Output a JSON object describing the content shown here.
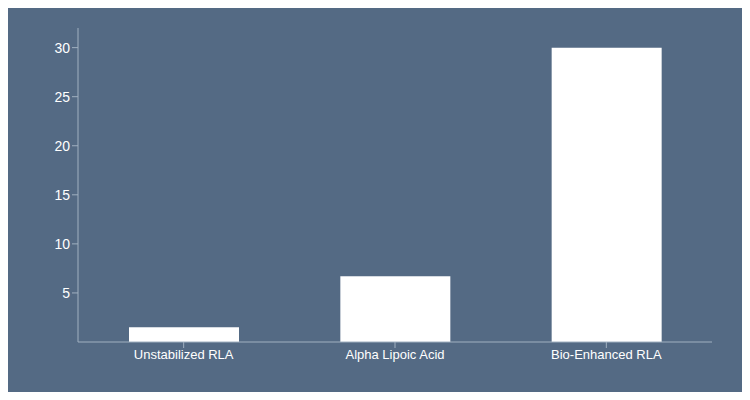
{
  "chart_data": {
    "type": "bar",
    "categories": [
      "Unstabilized RLA",
      "Alpha Lipoic Acid",
      "Bio-Enhanced RLA"
    ],
    "values": [
      1.5,
      6.7,
      30.0
    ],
    "color": "#ffffff",
    "ylim": [
      0,
      32
    ],
    "yticks": [
      5,
      10,
      15,
      20,
      25,
      30
    ],
    "grid": false
  }
}
